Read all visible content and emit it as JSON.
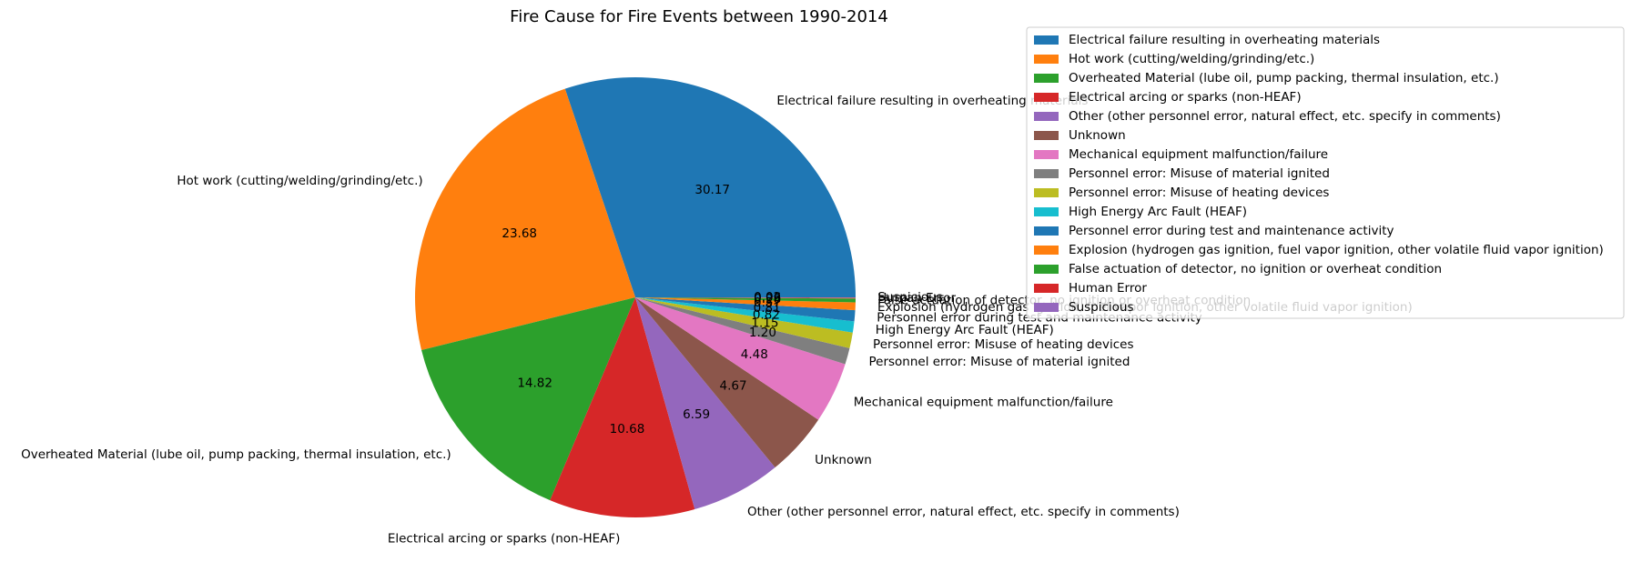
{
  "chart_data": {
    "type": "pie",
    "title": "Fire Cause for Fire Events between 1990-2014",
    "legend_placement": "right",
    "start_angle_deg": 0,
    "direction": "counterclockwise",
    "slices": [
      {
        "label": "Electrical failure resulting in overheating materials",
        "value": 30.17,
        "pct_text": "30.17",
        "color": "#1f77b4"
      },
      {
        "label": "Hot work (cutting/welding/grinding/etc.)",
        "value": 23.68,
        "pct_text": "23.68",
        "color": "#ff7f0e"
      },
      {
        "label": "Overheated Material (lube oil, pump packing, thermal insulation, etc.)",
        "value": 14.82,
        "pct_text": "14.82",
        "color": "#2ca02c"
      },
      {
        "label": "Electrical arcing or sparks (non-HEAF)",
        "value": 10.68,
        "pct_text": "10.68",
        "color": "#d62728"
      },
      {
        "label": "Other (other personnel error, natural effect, etc. specify in comments)",
        "value": 6.59,
        "pct_text": "6.59",
        "color": "#9467bd"
      },
      {
        "label": "Unknown",
        "value": 4.67,
        "pct_text": "4.67",
        "color": "#8c564b"
      },
      {
        "label": "Mechanical equipment malfunction/failure",
        "value": 4.48,
        "pct_text": "4.48",
        "color": "#e377c2"
      },
      {
        "label": "Personnel error: Misuse of material ignited",
        "value": 1.2,
        "pct_text": "1.20",
        "color": "#7f7f7f"
      },
      {
        "label": "Personnel error: Misuse of heating devices",
        "value": 1.15,
        "pct_text": "1.15",
        "color": "#bcbd22"
      },
      {
        "label": "High Energy Arc Fault (HEAF)",
        "value": 0.82,
        "pct_text": "0.82",
        "color": "#17becf"
      },
      {
        "label": "Personnel error during test and maintenance activity",
        "value": 0.81,
        "pct_text": "0.81",
        "color": "#1f77b4"
      },
      {
        "label": "Explosion (hydrogen gas ignition, fuel vapor ignition, other volatile fluid vapor ignition)",
        "value": 0.57,
        "pct_text": "0.57",
        "color": "#ff7f0e"
      },
      {
        "label": "False actuation of detector, no ignition or overheat condition",
        "value": 0.28,
        "pct_text": "0.28",
        "color": "#2ca02c"
      },
      {
        "label": "Human Error",
        "value": 0.06,
        "pct_text": "0.06",
        "color": "#d62728"
      },
      {
        "label": "Suspicious",
        "value": 0.02,
        "pct_text": "0.02",
        "color": "#9467bd"
      }
    ]
  }
}
